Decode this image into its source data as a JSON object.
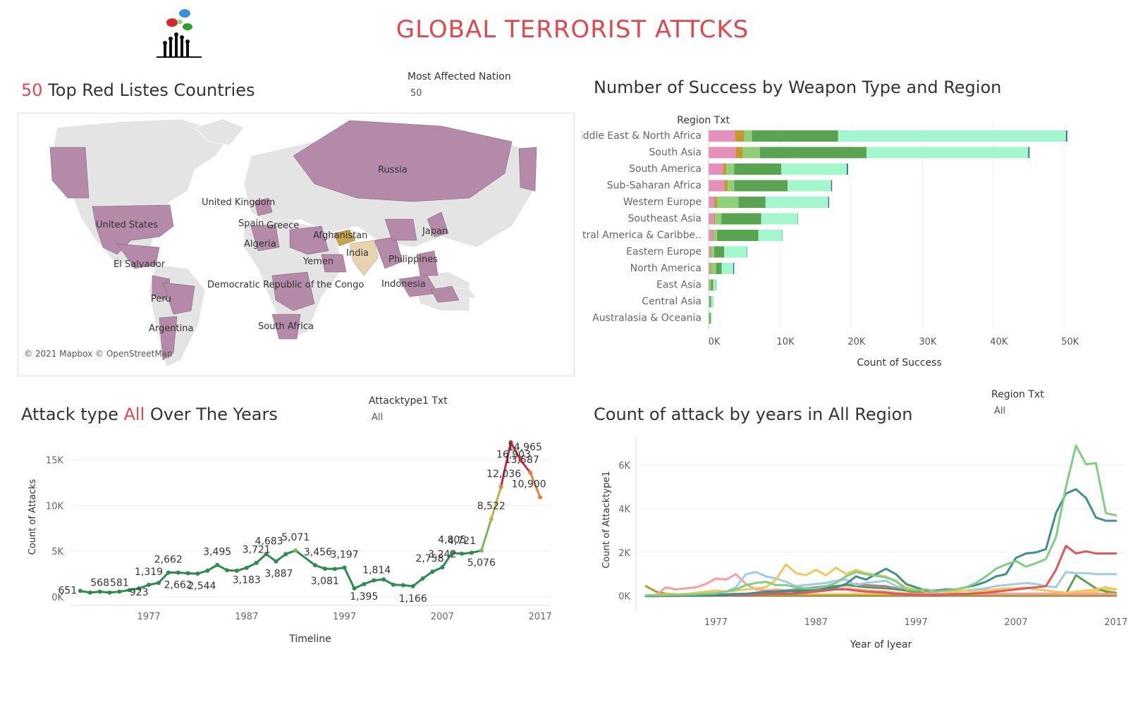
{
  "header": {
    "title": "GLOBAL TERRORIST ATTCKS",
    "logo_icon": "protest-hands-speech-bubbles-logo"
  },
  "map_section": {
    "title_number": "50",
    "title_rest": " Top Red Listes Countries",
    "filter_label": "Most Affected Nation",
    "filter_value": "50",
    "attribution": "© 2021 Mapbox © OpenStreetMap",
    "country_labels": [
      "Russia",
      "United Kingdom",
      "United States",
      "Spain",
      "Greece",
      "Afghanistan",
      "Japan",
      "Algeria",
      "India",
      "El Salvador",
      "Yemen",
      "Philippines",
      "Democratic Republic of the Congo",
      "Indonesia",
      "Peru",
      "Argentina",
      "South Africa"
    ],
    "colors": {
      "highlight": "#b48aa8",
      "top": "#c9a34a",
      "second": "#e8d3b0",
      "land": "#e3e3e3"
    }
  },
  "weapon_section": {
    "title": "Number of Success by Weapon Type and Region",
    "row_header": "Region Txt"
  },
  "attack_section": {
    "title_pre": "Attack type ",
    "title_hl": "All",
    "title_post": " Over The Years",
    "filter_label": "Attacktype1 Txt",
    "filter_value": "All"
  },
  "region_section": {
    "title": "Count of attack by years in All Region",
    "filter_label": "Region Txt",
    "filter_value": "All"
  },
  "chart_data": [
    {
      "type": "bar",
      "orientation": "horizontal-stacked",
      "title": "Number of Success by Weapon Type and Region",
      "xlabel": "Count of Success",
      "ylabel": "Region Txt",
      "xlim": [
        0,
        52000
      ],
      "xticks": [
        "0K",
        "10K",
        "20K",
        "30K",
        "40K",
        "50K"
      ],
      "categories": [
        "Middle East & North Africa",
        "South Asia",
        "South America",
        "Sub-Saharan Africa",
        "Western Europe",
        "Southeast Asia",
        "Central America & Caribbe..",
        "Eastern Europe",
        "North America",
        "East Asia",
        "Central Asia",
        "Australasia & Oceania"
      ],
      "series": [
        {
          "color": "#e68fba",
          "values": [
            3700,
            3800,
            2000,
            2200,
            800,
            700,
            600,
            300,
            200,
            100,
            50,
            50
          ]
        },
        {
          "color": "#c49a2f",
          "values": [
            1300,
            1000,
            500,
            500,
            400,
            200,
            100,
            100,
            150,
            50,
            20,
            20
          ]
        },
        {
          "color": "#8fd07a",
          "values": [
            1100,
            2400,
            1100,
            900,
            3000,
            900,
            500,
            400,
            700,
            200,
            80,
            40
          ]
        },
        {
          "color": "#5aa350",
          "values": [
            12100,
            15000,
            6600,
            7500,
            3800,
            5600,
            5800,
            1400,
            800,
            300,
            200,
            200
          ]
        },
        {
          "color": "#a4f7cd",
          "values": [
            32000,
            22700,
            9200,
            6100,
            8800,
            5100,
            3300,
            3200,
            1600,
            400,
            300,
            100
          ]
        },
        {
          "color": "#3b6fb0",
          "values": [
            200,
            200,
            200,
            150,
            150,
            50,
            50,
            50,
            150,
            50,
            20,
            10
          ]
        }
      ]
    },
    {
      "type": "line",
      "title": "Attack type All Over The Years",
      "xlabel": "Timeline",
      "ylabel": "Count of Attacks",
      "ylim": [
        0,
        17500
      ],
      "yticks": [
        "0K",
        "5K",
        "10K",
        "15K"
      ],
      "xticks": [
        "1977",
        "1987",
        "1997",
        "2007",
        "2017"
      ],
      "x": [
        1970,
        1971,
        1972,
        1973,
        1974,
        1975,
        1976,
        1977,
        1978,
        1979,
        1980,
        1981,
        1982,
        1983,
        1984,
        1985,
        1986,
        1987,
        1988,
        1989,
        1990,
        1991,
        1992,
        1994,
        1995,
        1996,
        1997,
        1998,
        1999,
        2000,
        2001,
        2002,
        2003,
        2004,
        2005,
        2006,
        2007,
        2008,
        2009,
        2010,
        2011,
        2012,
        2013,
        2014,
        2015,
        2016,
        2017
      ],
      "values": [
        651,
        471,
        568,
        473,
        581,
        740,
        923,
        1319,
        1526,
        2662,
        2662,
        2586,
        2544,
        2870,
        3495,
        2915,
        2860,
        3183,
        3721,
        4683,
        3887,
        4683,
        5071,
        3456,
        3081,
        3058,
        3197,
        934,
        1395,
        1814,
        1906,
        1333,
        1278,
        1166,
        2017,
        2758,
        3242,
        4805,
        4721,
        4826,
        5076,
        8522,
        12036,
        16903,
        14965,
        13587,
        10900
      ],
      "data_labels": [
        {
          "text": "651",
          "x": 1970,
          "y": 651
        },
        {
          "text": "568",
          "x": 1972,
          "y": 568
        },
        {
          "text": "581",
          "x": 1974,
          "y": 581
        },
        {
          "text": "923",
          "x": 1976,
          "y": 923
        },
        {
          "text": "1,319",
          "x": 1977,
          "y": 1319
        },
        {
          "text": "2,662",
          "x": 1979,
          "y": 2662
        },
        {
          "text": "2,662",
          "x": 1980,
          "y": 2662
        },
        {
          "text": "2,544",
          "x": 1982,
          "y": 2544
        },
        {
          "text": "3,495",
          "x": 1984,
          "y": 3495
        },
        {
          "text": "3,183",
          "x": 1987,
          "y": 3183
        },
        {
          "text": "3,721",
          "x": 1988,
          "y": 3721
        },
        {
          "text": "3,887",
          "x": 1990,
          "y": 3887
        },
        {
          "text": "4,683",
          "x": 1989,
          "y": 4683
        },
        {
          "text": "5,071",
          "x": 1992,
          "y": 5071
        },
        {
          "text": "3,456",
          "x": 1994,
          "y": 3456
        },
        {
          "text": "3,081",
          "x": 1995,
          "y": 3081
        },
        {
          "text": "3,197",
          "x": 1997,
          "y": 3197
        },
        {
          "text": "1,395",
          "x": 1999,
          "y": 1395
        },
        {
          "text": "1,814",
          "x": 2000,
          "y": 1814
        },
        {
          "text": "1,166",
          "x": 2004,
          "y": 1166
        },
        {
          "text": "2,758",
          "x": 2006,
          "y": 2758
        },
        {
          "text": "3,242",
          "x": 2007,
          "y": 3242
        },
        {
          "text": "4,721",
          "x": 2009,
          "y": 4721
        },
        {
          "text": "4,805",
          "x": 2008,
          "y": 4805
        },
        {
          "text": "5,076",
          "x": 2011,
          "y": 5076
        },
        {
          "text": "8,522",
          "x": 2012,
          "y": 8522
        },
        {
          "text": "12,036",
          "x": 2013,
          "y": 12036
        },
        {
          "text": "16,903",
          "x": 2014,
          "y": 16903
        },
        {
          "text": "14,965",
          "x": 2015,
          "y": 14965
        },
        {
          "text": "13,587",
          "x": 2016,
          "y": 13587
        },
        {
          "text": "10,900",
          "x": 2017,
          "y": 10900
        }
      ]
    },
    {
      "type": "line",
      "title": "Count of attack by years in All Region",
      "xlabel": "Year of Iyear",
      "ylabel": "Count of Attacktype1",
      "ylim": [
        -300,
        7300
      ],
      "yticks": [
        "0K",
        "2K",
        "4K",
        "6K"
      ],
      "xticks": [
        "1977",
        "1987",
        "1997",
        "2007",
        "2017"
      ],
      "x": [
        1970,
        1971,
        1972,
        1973,
        1974,
        1975,
        1976,
        1977,
        1978,
        1979,
        1980,
        1981,
        1982,
        1983,
        1984,
        1985,
        1986,
        1987,
        1988,
        1989,
        1990,
        1991,
        1992,
        1994,
        1995,
        1996,
        1997,
        1998,
        1999,
        2000,
        2001,
        2002,
        2003,
        2004,
        2005,
        2006,
        2007,
        2008,
        2009,
        2010,
        2011,
        2012,
        2013,
        2014,
        2015,
        2016,
        2017
      ],
      "series": [
        {
          "color": "#7ed07e",
          "values": [
            30,
            30,
            40,
            50,
            60,
            80,
            100,
            120,
            200,
            300,
            500,
            600,
            650,
            500,
            500,
            400,
            350,
            350,
            450,
            600,
            900,
            1100,
            1000,
            850,
            700,
            300,
            250,
            300,
            200,
            250,
            300,
            400,
            600,
            900,
            1250,
            1450,
            1600,
            1350,
            1500,
            1700,
            2700,
            5000,
            6900,
            6050,
            6100,
            3800,
            3700
          ]
        },
        {
          "color": "#3f8f8b",
          "values": [
            0,
            0,
            10,
            10,
            20,
            20,
            30,
            40,
            60,
            80,
            100,
            150,
            200,
            200,
            250,
            200,
            250,
            300,
            350,
            400,
            550,
            900,
            750,
            1250,
            1000,
            550,
            400,
            250,
            250,
            300,
            300,
            400,
            500,
            650,
            900,
            1000,
            1750,
            1950,
            2000,
            2150,
            3800,
            4700,
            4900,
            4500,
            3600,
            3450,
            3450
          ]
        },
        {
          "color": "#e15759",
          "values": [
            0,
            0,
            0,
            0,
            10,
            20,
            20,
            30,
            40,
            50,
            50,
            60,
            80,
            100,
            100,
            120,
            150,
            200,
            250,
            300,
            300,
            250,
            200,
            150,
            100,
            80,
            60,
            50,
            50,
            60,
            80,
            100,
            120,
            150,
            200,
            250,
            300,
            350,
            400,
            450,
            1200,
            2300,
            1950,
            2050,
            1950,
            1950,
            1950
          ]
        },
        {
          "color": "#f4c45e",
          "values": [
            30,
            50,
            80,
            60,
            100,
            150,
            200,
            250,
            200,
            250,
            300,
            350,
            400,
            750,
            1450,
            1050,
            950,
            1200,
            950,
            1300,
            1000,
            1200,
            1050,
            900,
            650,
            400,
            300,
            200,
            250,
            200,
            200,
            250,
            200,
            250,
            300,
            350,
            350,
            400,
            300,
            250,
            200,
            150,
            200,
            250,
            300,
            400,
            300
          ]
        },
        {
          "color": "#a0cbe8",
          "values": [
            0,
            10,
            20,
            30,
            50,
            80,
            100,
            150,
            200,
            400,
            1000,
            1100,
            900,
            800,
            650,
            450,
            500,
            550,
            600,
            700,
            750,
            500,
            600,
            700,
            450,
            350,
            300,
            250,
            250,
            200,
            200,
            250,
            300,
            350,
            450,
            500,
            550,
            600,
            550,
            450,
            400,
            1100,
            1050,
            1050,
            1000,
            1000,
            1000
          ]
        },
        {
          "color": "#ff9d9a",
          "values": [
            0,
            50,
            400,
            300,
            350,
            400,
            550,
            800,
            750,
            1000,
            550,
            300,
            250,
            300,
            250,
            200,
            200,
            250,
            300,
            350,
            350,
            300,
            250,
            200,
            150,
            120,
            100,
            100,
            100,
            100,
            100,
            100,
            100,
            100,
            100,
            100,
            100,
            100,
            100,
            100,
            100,
            100,
            100,
            100,
            100,
            100,
            100
          ]
        },
        {
          "color": "#59a14f",
          "values": [
            0,
            0,
            10,
            10,
            20,
            20,
            30,
            40,
            50,
            60,
            80,
            100,
            120,
            150,
            200,
            250,
            300,
            350,
            400,
            450,
            500,
            450,
            400,
            350,
            300,
            250,
            200,
            150,
            100,
            100,
            100,
            100,
            100,
            100,
            100,
            100,
            100,
            100,
            100,
            100,
            100,
            100,
            950,
            650,
            350,
            200,
            150
          ]
        },
        {
          "color": "#b07aa1",
          "values": [
            0,
            0,
            10,
            20,
            30,
            40,
            50,
            60,
            80,
            100,
            100,
            120,
            150,
            200,
            250,
            300,
            350,
            400,
            450,
            450,
            500,
            550,
            500,
            450,
            350,
            250,
            150,
            100,
            100,
            100,
            100,
            100,
            100,
            100,
            100,
            100,
            100,
            100,
            100,
            100,
            100,
            100,
            100,
            100,
            100,
            100,
            100
          ]
        },
        {
          "color": "#b6992d",
          "values": [
            450,
            200,
            100,
            80,
            60,
            50,
            40,
            30,
            20,
            20,
            20,
            20,
            20,
            20,
            20,
            20,
            20,
            20,
            20,
            20,
            20,
            20,
            20,
            20,
            20,
            20,
            20,
            20,
            20,
            20,
            20,
            20,
            20,
            20,
            20,
            20,
            20,
            20,
            20,
            20,
            20,
            20,
            20,
            20,
            20,
            20,
            20
          ]
        },
        {
          "color": "#f1ce63",
          "values": [
            0,
            0,
            0,
            10,
            10,
            20,
            20,
            30,
            30,
            40,
            40,
            50,
            50,
            60,
            60,
            70,
            70,
            80,
            80,
            90,
            90,
            100,
            100,
            100,
            100,
            100,
            100,
            100,
            100,
            100,
            100,
            100,
            100,
            100,
            100,
            100,
            100,
            100,
            100,
            100,
            100,
            100,
            100,
            150,
            200,
            300,
            300
          ]
        },
        {
          "color": "#4e79a7",
          "values": [
            10,
            10,
            10,
            10,
            10,
            10,
            10,
            10,
            10,
            10,
            10,
            10,
            10,
            10,
            10,
            10,
            10,
            10,
            10,
            10,
            10,
            10,
            10,
            10,
            10,
            10,
            10,
            10,
            10,
            10,
            10,
            10,
            10,
            10,
            10,
            10,
            10,
            10,
            10,
            10,
            10,
            10,
            10,
            10,
            10,
            10,
            10
          ]
        }
      ]
    }
  ]
}
